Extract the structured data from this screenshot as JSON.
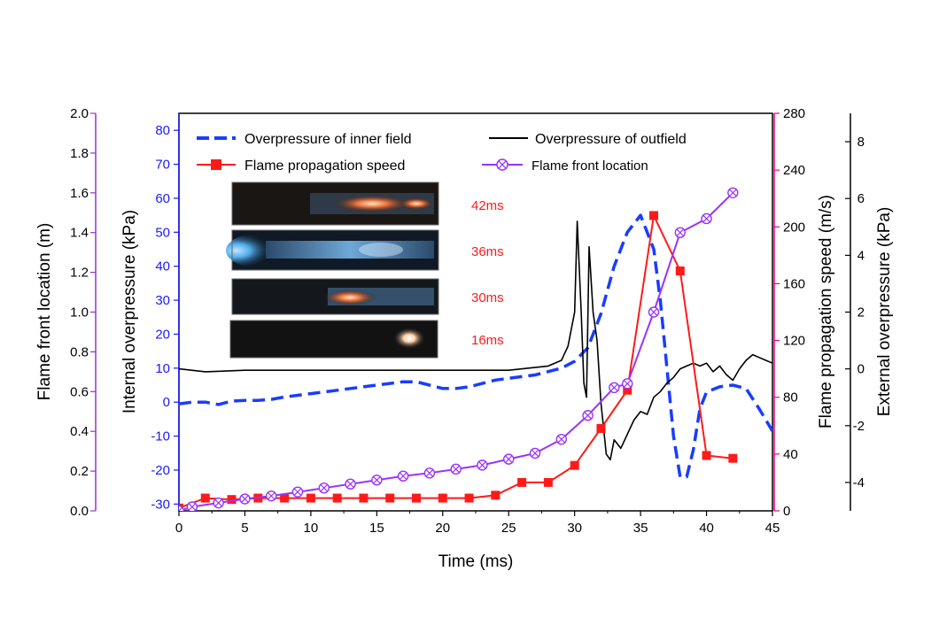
{
  "chart_data": {
    "type": "line",
    "x_axis": {
      "label": "Time (ms)",
      "range": [
        0,
        45
      ],
      "ticks": [
        0,
        5,
        10,
        15,
        20,
        25,
        30,
        35,
        40,
        45
      ]
    },
    "axes": {
      "flame_location": {
        "label": "Flame front location (m)",
        "range": [
          0.0,
          2.0
        ],
        "ticks": [
          "0.0",
          "0.2",
          "0.4",
          "0.6",
          "0.8",
          "1.0",
          "1.2",
          "1.4",
          "1.6",
          "1.8",
          "2.0"
        ],
        "color": "#9933cc"
      },
      "internal_overpressure": {
        "label": "Internal overpressure (kPa)",
        "range": [
          -32,
          85
        ],
        "ticks": [
          "-30",
          "-20",
          "-10",
          "0",
          "10",
          "20",
          "30",
          "40",
          "50",
          "60",
          "70",
          "80"
        ],
        "color": "#1a1aff"
      },
      "flame_speed": {
        "label": "Flame propagation speed (m/s)",
        "range": [
          0,
          280
        ],
        "ticks": [
          "0",
          "40",
          "80",
          "120",
          "160",
          "200",
          "240",
          "280"
        ],
        "color": "#e6007e"
      },
      "external_overpressure": {
        "label": "External overpressure (kPa)",
        "range": [
          -5,
          9
        ],
        "ticks": [
          "-4",
          "-2",
          "0",
          "2",
          "4",
          "6",
          "8"
        ],
        "color": "#000000"
      }
    },
    "legend": {
      "placement": "top",
      "entries": [
        {
          "label": "Overpressure of inner field",
          "color": "#1a3cff",
          "style": "dashed"
        },
        {
          "label": "Overpressure of outfield",
          "color": "#000000",
          "style": "solid"
        },
        {
          "label": "Flame propagation speed",
          "color": "#ff1a1a",
          "style": "line-square"
        },
        {
          "label": "Flame front location",
          "color": "#9933ff",
          "style": "line-crossed-circle"
        }
      ]
    },
    "series": [
      {
        "name": "Overpressure of inner field",
        "axis": "internal_overpressure",
        "color": "#1a3cff",
        "x": [
          0,
          1,
          2,
          3,
          4,
          5,
          6,
          7,
          8,
          9,
          10,
          11,
          12,
          13,
          14,
          15,
          16,
          17,
          18,
          19,
          20,
          21,
          22,
          23,
          24,
          25,
          26,
          27,
          28,
          29,
          30,
          31,
          32,
          33,
          34,
          35,
          36,
          36.5,
          37,
          37.5,
          38,
          38.5,
          39,
          39.5,
          40,
          41,
          42,
          43,
          44,
          45
        ],
        "y": [
          -0.5,
          0,
          0,
          -0.7,
          0.3,
          0.5,
          0.5,
          0.8,
          1.5,
          2,
          2.5,
          3,
          3.5,
          4,
          4.5,
          5,
          5.5,
          6,
          6,
          5,
          4,
          4,
          4.5,
          5.5,
          6.5,
          7,
          7.5,
          8,
          9,
          10,
          12,
          16,
          26,
          40,
          50,
          55,
          45,
          30,
          10,
          -10,
          -22,
          -22,
          -14,
          -2,
          3,
          4.5,
          5,
          4,
          -2,
          -8.5
        ]
      },
      {
        "name": "Overpressure of outfield",
        "axis": "external_overpressure",
        "color": "#000000",
        "x": [
          0,
          2,
          5,
          10,
          15,
          20,
          25,
          28,
          29,
          29.5,
          30,
          30.2,
          30.5,
          30.7,
          30.9,
          31.1,
          31.4,
          31.7,
          32,
          32.4,
          32.7,
          33,
          33.5,
          34,
          34.5,
          35,
          35.5,
          36,
          36.5,
          37,
          37.5,
          38,
          38.5,
          39,
          39.5,
          40,
          40.5,
          41,
          41.5,
          42,
          42.5,
          43,
          43.5,
          44,
          44.5,
          45
        ],
        "y": [
          0,
          -0.1,
          -0.05,
          -0.05,
          -0.05,
          -0.05,
          -0.05,
          0.1,
          0.3,
          0.8,
          2,
          5.2,
          2,
          -0.5,
          -1,
          4.3,
          2,
          1,
          -1.2,
          -3,
          -3.2,
          -2.5,
          -2.8,
          -2.3,
          -1.8,
          -1.5,
          -1.6,
          -1,
          -0.8,
          -0.5,
          -0.3,
          0,
          0.1,
          0.2,
          0.1,
          0.2,
          -0.1,
          0.1,
          -0.2,
          -0.4,
          0,
          0.3,
          0.5,
          0.4,
          0.3,
          0.2
        ]
      },
      {
        "name": "Flame propagation speed",
        "axis": "flame_speed",
        "color": "#ff1a1a",
        "x": [
          0,
          2,
          4,
          6,
          8,
          10,
          12,
          14,
          16,
          18,
          20,
          22,
          24,
          26,
          28,
          30,
          32,
          34,
          36,
          38,
          40,
          42
        ],
        "y": [
          2,
          9,
          8,
          9,
          9,
          9,
          9,
          9,
          9,
          9,
          9,
          9,
          11,
          20,
          20,
          32,
          58,
          85,
          208,
          169,
          39,
          37
        ]
      },
      {
        "name": "Flame front location",
        "axis": "flame_location",
        "color": "#9933ff",
        "x": [
          0,
          1,
          3,
          5,
          7,
          9,
          11,
          13,
          15,
          17,
          19,
          21,
          23,
          25,
          27,
          29,
          31,
          33,
          34,
          36,
          38,
          40,
          42
        ],
        "y": [
          0.0,
          0.02,
          0.04,
          0.06,
          0.075,
          0.095,
          0.115,
          0.135,
          0.155,
          0.175,
          0.19,
          0.21,
          0.23,
          0.26,
          0.29,
          0.36,
          0.48,
          0.62,
          0.64,
          1.0,
          1.4,
          1.47,
          1.6
        ]
      }
    ],
    "inset_images": [
      {
        "label": "42ms"
      },
      {
        "label": "36ms"
      },
      {
        "label": "30ms"
      },
      {
        "label": "16ms"
      }
    ]
  }
}
